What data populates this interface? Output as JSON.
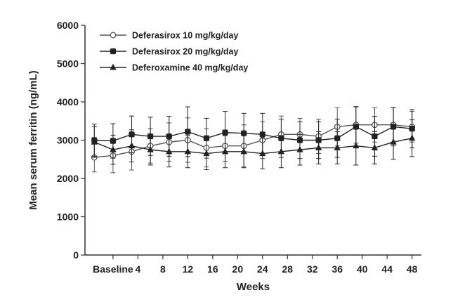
{
  "chart_data": {
    "type": "line",
    "title": "",
    "xlabel": "Weeks",
    "ylabel": "Mean serum ferritin (ng/mL)",
    "ylim": [
      0,
      6000
    ],
    "y_ticks": [
      0,
      1000,
      2000,
      3000,
      4000,
      5000,
      6000
    ],
    "x_range": [
      -4.5,
      49.5
    ],
    "x_ticks": [
      {
        "value": 0,
        "label": "Baseline"
      },
      {
        "value": 4,
        "label": "4"
      },
      {
        "value": 8,
        "label": "8"
      },
      {
        "value": 12,
        "label": "12"
      },
      {
        "value": 16,
        "label": "16"
      },
      {
        "value": 20,
        "label": "20"
      },
      {
        "value": 24,
        "label": "24"
      },
      {
        "value": 28,
        "label": "28"
      },
      {
        "value": 32,
        "label": "32"
      },
      {
        "value": 36,
        "label": "36"
      },
      {
        "value": 40,
        "label": "40"
      },
      {
        "value": 44,
        "label": "44"
      },
      {
        "value": 48,
        "label": "48"
      }
    ],
    "grid": false,
    "legend_position": "top-left",
    "x": [
      -3,
      0,
      3,
      6,
      9,
      12,
      15,
      18,
      21,
      24,
      27,
      30,
      33,
      36,
      39,
      42,
      45,
      48
    ],
    "series": [
      {
        "name": "Deferasirox 10 mg/kg/day",
        "marker": "circle-open",
        "color": "#555555",
        "values": [
          2550,
          2600,
          2700,
          2850,
          2950,
          3000,
          2800,
          2850,
          2850,
          3000,
          3150,
          3150,
          3100,
          3350,
          3400,
          3400,
          3400,
          3350
        ],
        "errors": [
          380,
          450,
          480,
          450,
          500,
          580,
          500,
          400,
          550,
          480,
          480,
          420,
          450,
          500,
          480,
          450,
          450,
          400
        ]
      },
      {
        "name": "Deferasirox 20 mg/kg/day",
        "marker": "square-filled",
        "color": "#222222",
        "values": [
          3000,
          2980,
          3150,
          3100,
          3100,
          3220,
          3050,
          3200,
          3180,
          3150,
          3050,
          3000,
          3000,
          3050,
          3350,
          3100,
          3350,
          3300
        ],
        "errors": [
          420,
          450,
          480,
          500,
          520,
          650,
          520,
          550,
          520,
          550,
          500,
          480,
          480,
          500,
          520,
          520,
          500,
          500
        ]
      },
      {
        "name": "Deferoxamine 40 mg/kg/day",
        "marker": "triangle-filled",
        "color": "#222222",
        "values": [
          2950,
          2750,
          2850,
          2750,
          2700,
          2700,
          2650,
          2700,
          2700,
          2650,
          2700,
          2750,
          2800,
          2800,
          2850,
          2800,
          2950,
          3050
        ],
        "errors": [
          400,
          380,
          420,
          400,
          400,
          420,
          420,
          420,
          420,
          400,
          420,
          400,
          420,
          420,
          500,
          420,
          450,
          480
        ]
      }
    ]
  }
}
